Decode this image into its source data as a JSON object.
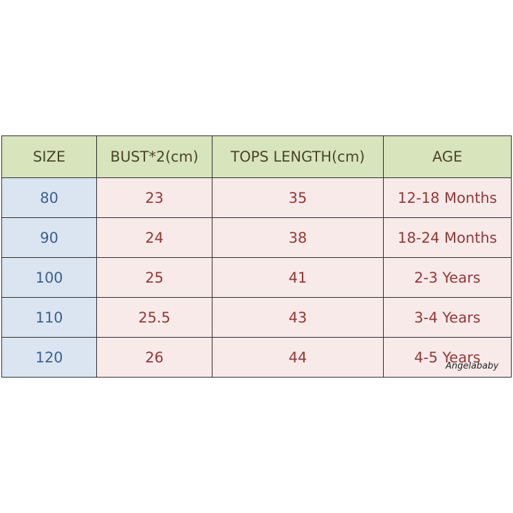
{
  "table": {
    "header": [
      "SIZE",
      "BUST*2(cm)",
      "TOPS LENGTH(cm)",
      "AGE"
    ],
    "rows": [
      [
        "80",
        "23",
        "35",
        "12-18 Months"
      ],
      [
        "90",
        "24",
        "38",
        "18-24 Months"
      ],
      [
        "100",
        "25",
        "41",
        "2-3 Years"
      ],
      [
        "110",
        "25.5",
        "43",
        "3-4 Years"
      ],
      [
        "120",
        "26",
        "44",
        "4-5 Years"
      ]
    ]
  },
  "watermark": "Angelababy"
}
